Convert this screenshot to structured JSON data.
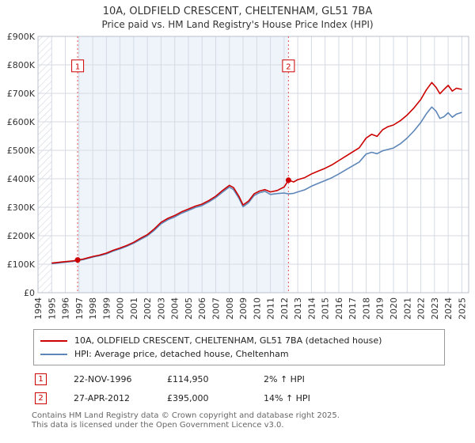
{
  "title": "10A, OLDFIELD CRESCENT, CHELTENHAM, GL51 7BA",
  "subtitle": "Price paid vs. HM Land Registry's House Price Index (HPI)",
  "chart_data": {
    "type": "line",
    "ylim": [
      0,
      900000
    ],
    "y_tick_labels": [
      "£0",
      "£100K",
      "£200K",
      "£300K",
      "£400K",
      "£500K",
      "£600K",
      "£700K",
      "£800K",
      "£900K"
    ],
    "x_tick_labels": [
      "1994",
      "1995",
      "1996",
      "1997",
      "1998",
      "1999",
      "2000",
      "2001",
      "2002",
      "2003",
      "2004",
      "2005",
      "2006",
      "2007",
      "2008",
      "2009",
      "2010",
      "2011",
      "2012",
      "2013",
      "2014",
      "2015",
      "2016",
      "2017",
      "2018",
      "2019",
      "2020",
      "2021",
      "2022",
      "2023",
      "2024",
      "2025"
    ],
    "x_range": [
      1994,
      2025.5
    ],
    "grid": true,
    "legend_position": "bottom",
    "shaded_region": [
      1996.9,
      2012.32
    ],
    "hatch_region": [
      1994,
      1995
    ],
    "x": [
      1995.0,
      1995.4,
      1995.8,
      1996.2,
      1996.6,
      1996.9,
      1997.3,
      1997.7,
      1998.1,
      1998.5,
      1999.0,
      1999.5,
      2000.0,
      2000.5,
      2001.0,
      2001.5,
      2002.0,
      2002.5,
      2003.0,
      2003.5,
      2004.0,
      2004.5,
      2005.0,
      2005.5,
      2006.0,
      2006.5,
      2007.0,
      2007.5,
      2008.0,
      2008.3,
      2008.7,
      2009.0,
      2009.4,
      2009.8,
      2010.2,
      2010.6,
      2011.0,
      2011.5,
      2012.0,
      2012.32,
      2012.7,
      2013.0,
      2013.5,
      2014.0,
      2014.5,
      2015.0,
      2015.5,
      2016.0,
      2016.5,
      2017.0,
      2017.5,
      2018.0,
      2018.4,
      2018.8,
      2019.2,
      2019.6,
      2020.0,
      2020.5,
      2021.0,
      2021.5,
      2022.0,
      2022.4,
      2022.8,
      2023.1,
      2023.4,
      2023.7,
      2024.0,
      2024.3,
      2024.6,
      2025.0
    ],
    "series": [
      {
        "name": "10A, OLDFIELD CRESCENT, CHELTENHAM, GL51 7BA (detached house)",
        "color": "#cc0000",
        "values": [
          104000,
          106000,
          108000,
          110000,
          112000,
          114950,
          118000,
          123000,
          128000,
          132000,
          139000,
          149000,
          157000,
          166000,
          177000,
          191000,
          204000,
          224000,
          247000,
          261000,
          271000,
          284000,
          294000,
          304000,
          311000,
          324000,
          339000,
          359000,
          377000,
          369000,
          338000,
          308000,
          322000,
          347000,
          357000,
          362000,
          354000,
          359000,
          371000,
          395000,
          389000,
          397000,
          404000,
          417000,
          427000,
          437000,
          449000,
          464000,
          479000,
          494000,
          509000,
          543000,
          556000,
          549000,
          572000,
          583000,
          589000,
          604000,
          624000,
          649000,
          679000,
          712000,
          738000,
          722000,
          699000,
          714000,
          728000,
          708000,
          718000,
          714000
        ]
      },
      {
        "name": "HPI: Average price, detached house, Cheltenham",
        "color": "#5e87b8",
        "values": [
          102000,
          104000,
          106000,
          108000,
          110000,
          112700,
          116000,
          121000,
          126000,
          130000,
          136000,
          146000,
          154000,
          163000,
          174000,
          187000,
          200000,
          219000,
          242000,
          256000,
          266000,
          279000,
          289000,
          299000,
          306000,
          319000,
          334000,
          353000,
          371000,
          362000,
          331000,
          302000,
          316000,
          341000,
          351000,
          356000,
          345000,
          348000,
          350000,
          347000,
          349000,
          354000,
          361000,
          374000,
          384000,
          394000,
          404000,
          417000,
          431000,
          445000,
          459000,
          487000,
          493000,
          488000,
          498000,
          503000,
          508000,
          523000,
          543000,
          568000,
          598000,
          628000,
          652000,
          638000,
          612000,
          618000,
          632000,
          616000,
          627000,
          633000
        ]
      }
    ],
    "sales": [
      {
        "label": "1",
        "x": 1996.9,
        "value": 114950
      },
      {
        "label": "2",
        "x": 2012.32,
        "value": 395000
      }
    ],
    "colors": {
      "grid": "#d4dae4",
      "frame": "#b9c1cd",
      "band": "#eaf0fa",
      "hatch": "#c9ced8",
      "sale_line": "#e05555",
      "marker_red": "#cc0000"
    }
  },
  "transactions": [
    {
      "num": "1",
      "date": "22-NOV-1996",
      "price": "£114,950",
      "hpi": "2% ↑ HPI"
    },
    {
      "num": "2",
      "date": "27-APR-2012",
      "price": "£395,000",
      "hpi": "14% ↑ HPI"
    }
  ],
  "footer": {
    "line1": "Contains HM Land Registry data © Crown copyright and database right 2025.",
    "line2": "This data is licensed under the Open Government Licence v3.0."
  }
}
